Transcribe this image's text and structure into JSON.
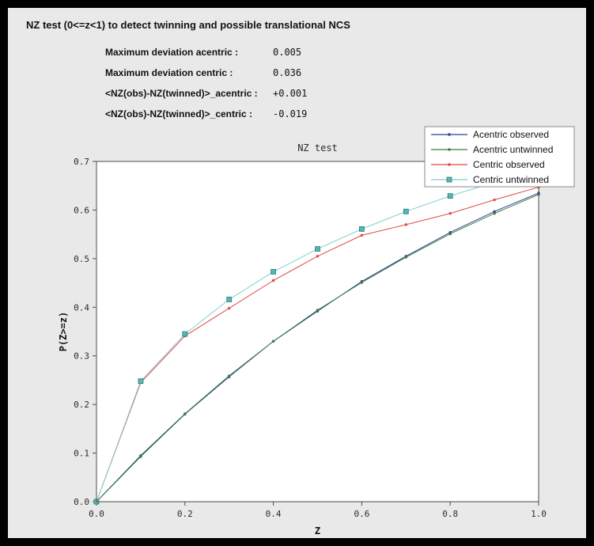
{
  "window": {
    "bg": "#000000",
    "panel_bg": "#e9e9e9"
  },
  "header": {
    "title": "NZ test (0<=z<1) to detect twinning and possible translational NCS"
  },
  "stats": {
    "rows": [
      {
        "label": "Maximum deviation acentric :",
        "value": "0.005"
      },
      {
        "label": "Maximum deviation centric :",
        "value": "0.036"
      },
      {
        "label": "<NZ(obs)-NZ(twinned)>_acentric :",
        "value": "+0.001"
      },
      {
        "label": "<NZ(obs)-NZ(twinned)>_centric :",
        "value": "-0.019"
      }
    ]
  },
  "chart_data": {
    "type": "line",
    "title": "NZ test",
    "xlabel": "Z",
    "ylabel": "P(Z>=z)",
    "xlim": [
      0,
      1
    ],
    "ylim": [
      0,
      0.7
    ],
    "xticks": [
      0.0,
      0.2,
      0.4,
      0.6,
      0.8,
      1.0
    ],
    "yticks": [
      0.0,
      0.1,
      0.2,
      0.3,
      0.4,
      0.5,
      0.6,
      0.7
    ],
    "grid": false,
    "legend_position": "top-right",
    "plot_bg": "#ffffff",
    "x": [
      0.0,
      0.1,
      0.2,
      0.3,
      0.4,
      0.5,
      0.6,
      0.7,
      0.8,
      0.9,
      1.0
    ],
    "series": [
      {
        "name": "Acentric observed",
        "color": "#2c3e9c",
        "marker": "dot",
        "values": [
          0.0,
          0.093,
          0.18,
          0.257,
          0.33,
          0.392,
          0.453,
          0.505,
          0.554,
          0.597,
          0.635
        ]
      },
      {
        "name": "Acentric untwinned",
        "color": "#3f7d3f",
        "marker": "dot",
        "values": [
          0.0,
          0.095,
          0.181,
          0.259,
          0.33,
          0.394,
          0.451,
          0.503,
          0.551,
          0.593,
          0.632
        ]
      },
      {
        "name": "Centric observed",
        "color": "#dd4b3e",
        "marker": "dot",
        "values": [
          0.0,
          0.245,
          0.341,
          0.398,
          0.455,
          0.505,
          0.548,
          0.57,
          0.593,
          0.621,
          0.647
        ]
      },
      {
        "name": "Centric untwinned",
        "color": "#85ced0",
        "marker": "square",
        "marker_color": "#58b6b2",
        "marker_edge": "#2e7d7d",
        "values": [
          0.0,
          0.248,
          0.345,
          0.416,
          0.473,
          0.52,
          0.561,
          0.597,
          0.629,
          0.657,
          0.683
        ]
      }
    ]
  }
}
